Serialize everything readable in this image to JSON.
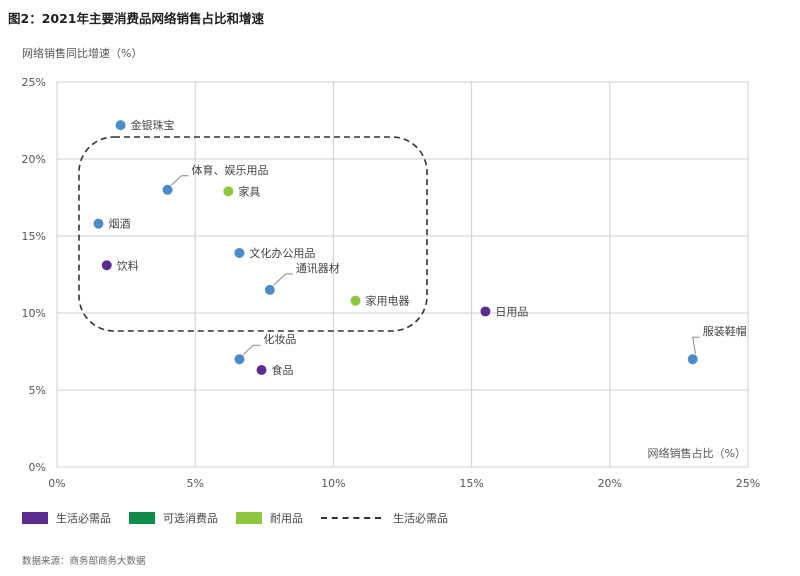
{
  "title": "图2：2021年主要消费品网络销售占比和增速",
  "source": "数据来源：商务部商务大数据",
  "legend": [
    {
      "label": "生活必需品",
      "color": "#5c2d91"
    },
    {
      "label": "可选消费品",
      "color": "#0d8c4a"
    },
    {
      "label": "耐用品",
      "color": "#8dc63f"
    },
    {
      "label": "生活必需品",
      "style": "dashed"
    }
  ],
  "chart_data": {
    "type": "scatter",
    "ylabel": "网络销售同比增速（%）",
    "xlabel": "网络销售占比（%）",
    "xlim": [
      0,
      25
    ],
    "ylim": [
      0,
      25
    ],
    "xticks": [
      "0%",
      "5%",
      "10%",
      "15%",
      "20%",
      "25%"
    ],
    "yticks": [
      "0%",
      "5%",
      "10%",
      "15%",
      "20%",
      "25%"
    ],
    "grid": true,
    "points": [
      {
        "label": "金银珠宝",
        "x": 2.3,
        "y": 22.2,
        "color": "#4a8cc9"
      },
      {
        "label": "体育、娱乐用品",
        "x": 4.0,
        "y": 18.0,
        "color": "#4a8cc9"
      },
      {
        "label": "家具",
        "x": 6.2,
        "y": 17.9,
        "color": "#8dc63f"
      },
      {
        "label": "烟酒",
        "x": 1.5,
        "y": 15.8,
        "color": "#4a8cc9"
      },
      {
        "label": "文化办公用品",
        "x": 6.6,
        "y": 13.9,
        "color": "#4a8cc9"
      },
      {
        "label": "饮料",
        "x": 1.8,
        "y": 13.1,
        "color": "#5c2d91"
      },
      {
        "label": "通讯器材",
        "x": 7.7,
        "y": 11.5,
        "color": "#4a8cc9"
      },
      {
        "label": "家用电器",
        "x": 10.8,
        "y": 10.8,
        "color": "#8dc63f"
      },
      {
        "label": "日用品",
        "x": 15.5,
        "y": 10.1,
        "color": "#5c2d91"
      },
      {
        "label": "化妆品",
        "x": 6.6,
        "y": 7.0,
        "color": "#4a8cc9"
      },
      {
        "label": "食品",
        "x": 7.4,
        "y": 6.3,
        "color": "#5c2d91"
      },
      {
        "label": "服装鞋帽",
        "x": 23.0,
        "y": 7.0,
        "color": "#4a8cc9"
      }
    ]
  }
}
